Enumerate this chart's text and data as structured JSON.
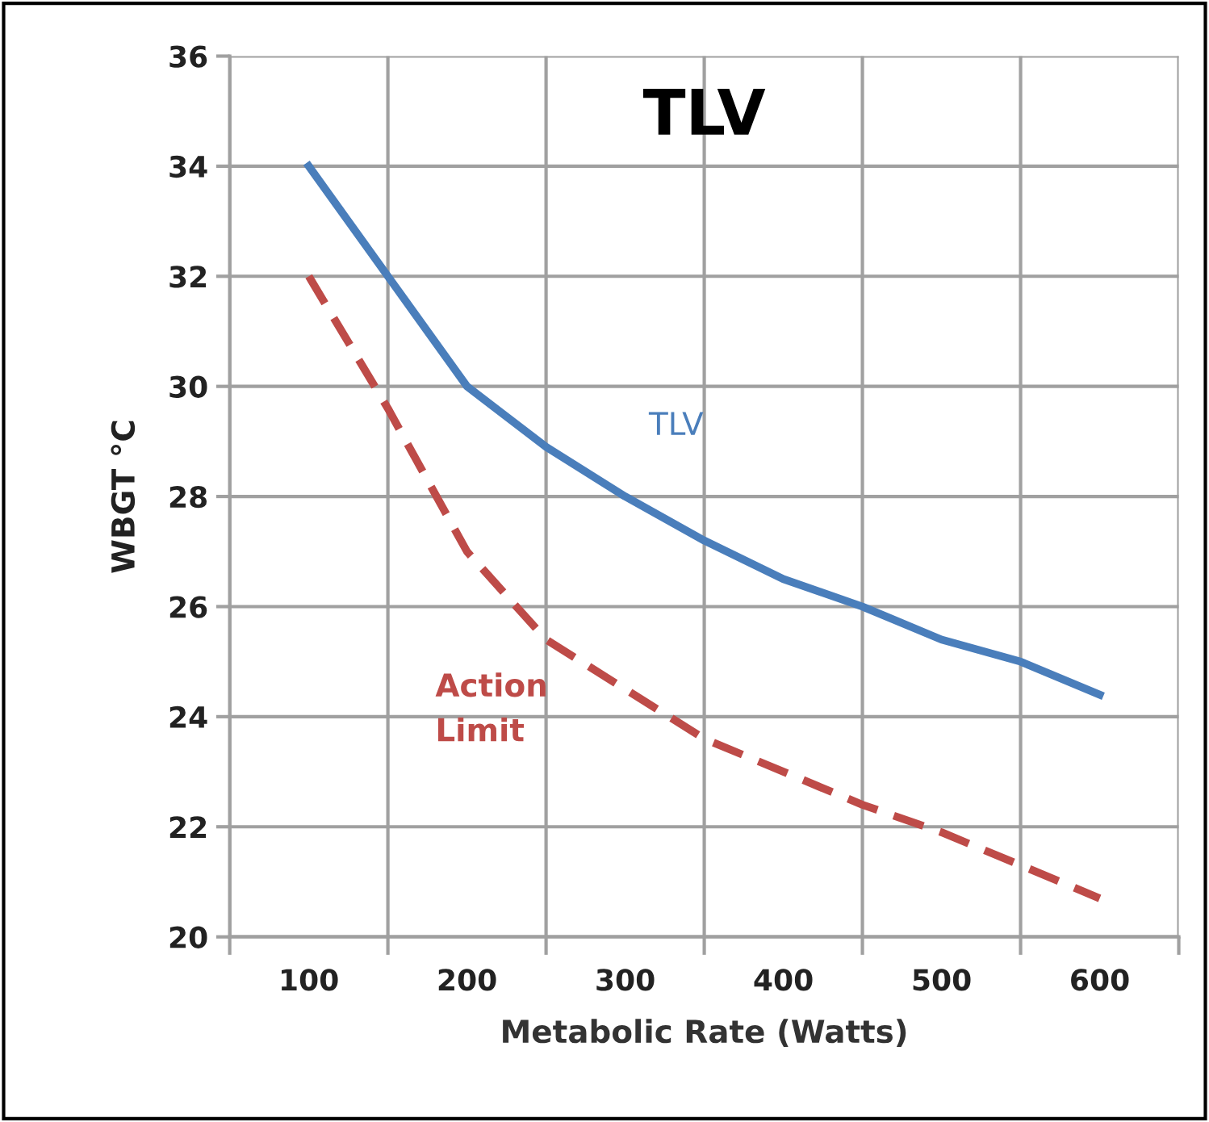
{
  "chart_data": {
    "type": "line",
    "title": "TLV",
    "xlabel": "Metabolic Rate (Watts)",
    "ylabel": "WBGT °C",
    "x": [
      100,
      150,
      200,
      250,
      300,
      350,
      400,
      450,
      500,
      550,
      600
    ],
    "series": [
      {
        "name": "TLV",
        "color": "#4a7ebb",
        "line_style": "solid",
        "values": [
          34,
          32,
          30,
          28.9,
          28,
          27.2,
          26.5,
          26,
          25.4,
          25,
          24.4
        ]
      },
      {
        "name": "Action Limit",
        "color": "#be4b48",
        "line_style": "dashed",
        "values": [
          32,
          29.6,
          27,
          25.4,
          24.5,
          23.6,
          23,
          22.4,
          21.9,
          21.3,
          20.7
        ]
      }
    ],
    "xlim": [
      50,
      650
    ],
    "xticks": [
      {
        "value": 50,
        "label": null
      },
      100,
      {
        "value": 150,
        "label": null
      },
      200,
      {
        "value": 250,
        "label": null
      },
      300,
      {
        "value": 350,
        "label": null
      },
      400,
      {
        "value": 450,
        "label": null
      },
      500,
      {
        "value": 550,
        "label": null
      },
      600,
      {
        "value": 650,
        "label": null
      }
    ],
    "ylim": [
      20,
      36
    ],
    "yticks": [
      20,
      22,
      24,
      26,
      28,
      30,
      32,
      34,
      36
    ],
    "grid": true,
    "legend": false,
    "marker": "none"
  }
}
